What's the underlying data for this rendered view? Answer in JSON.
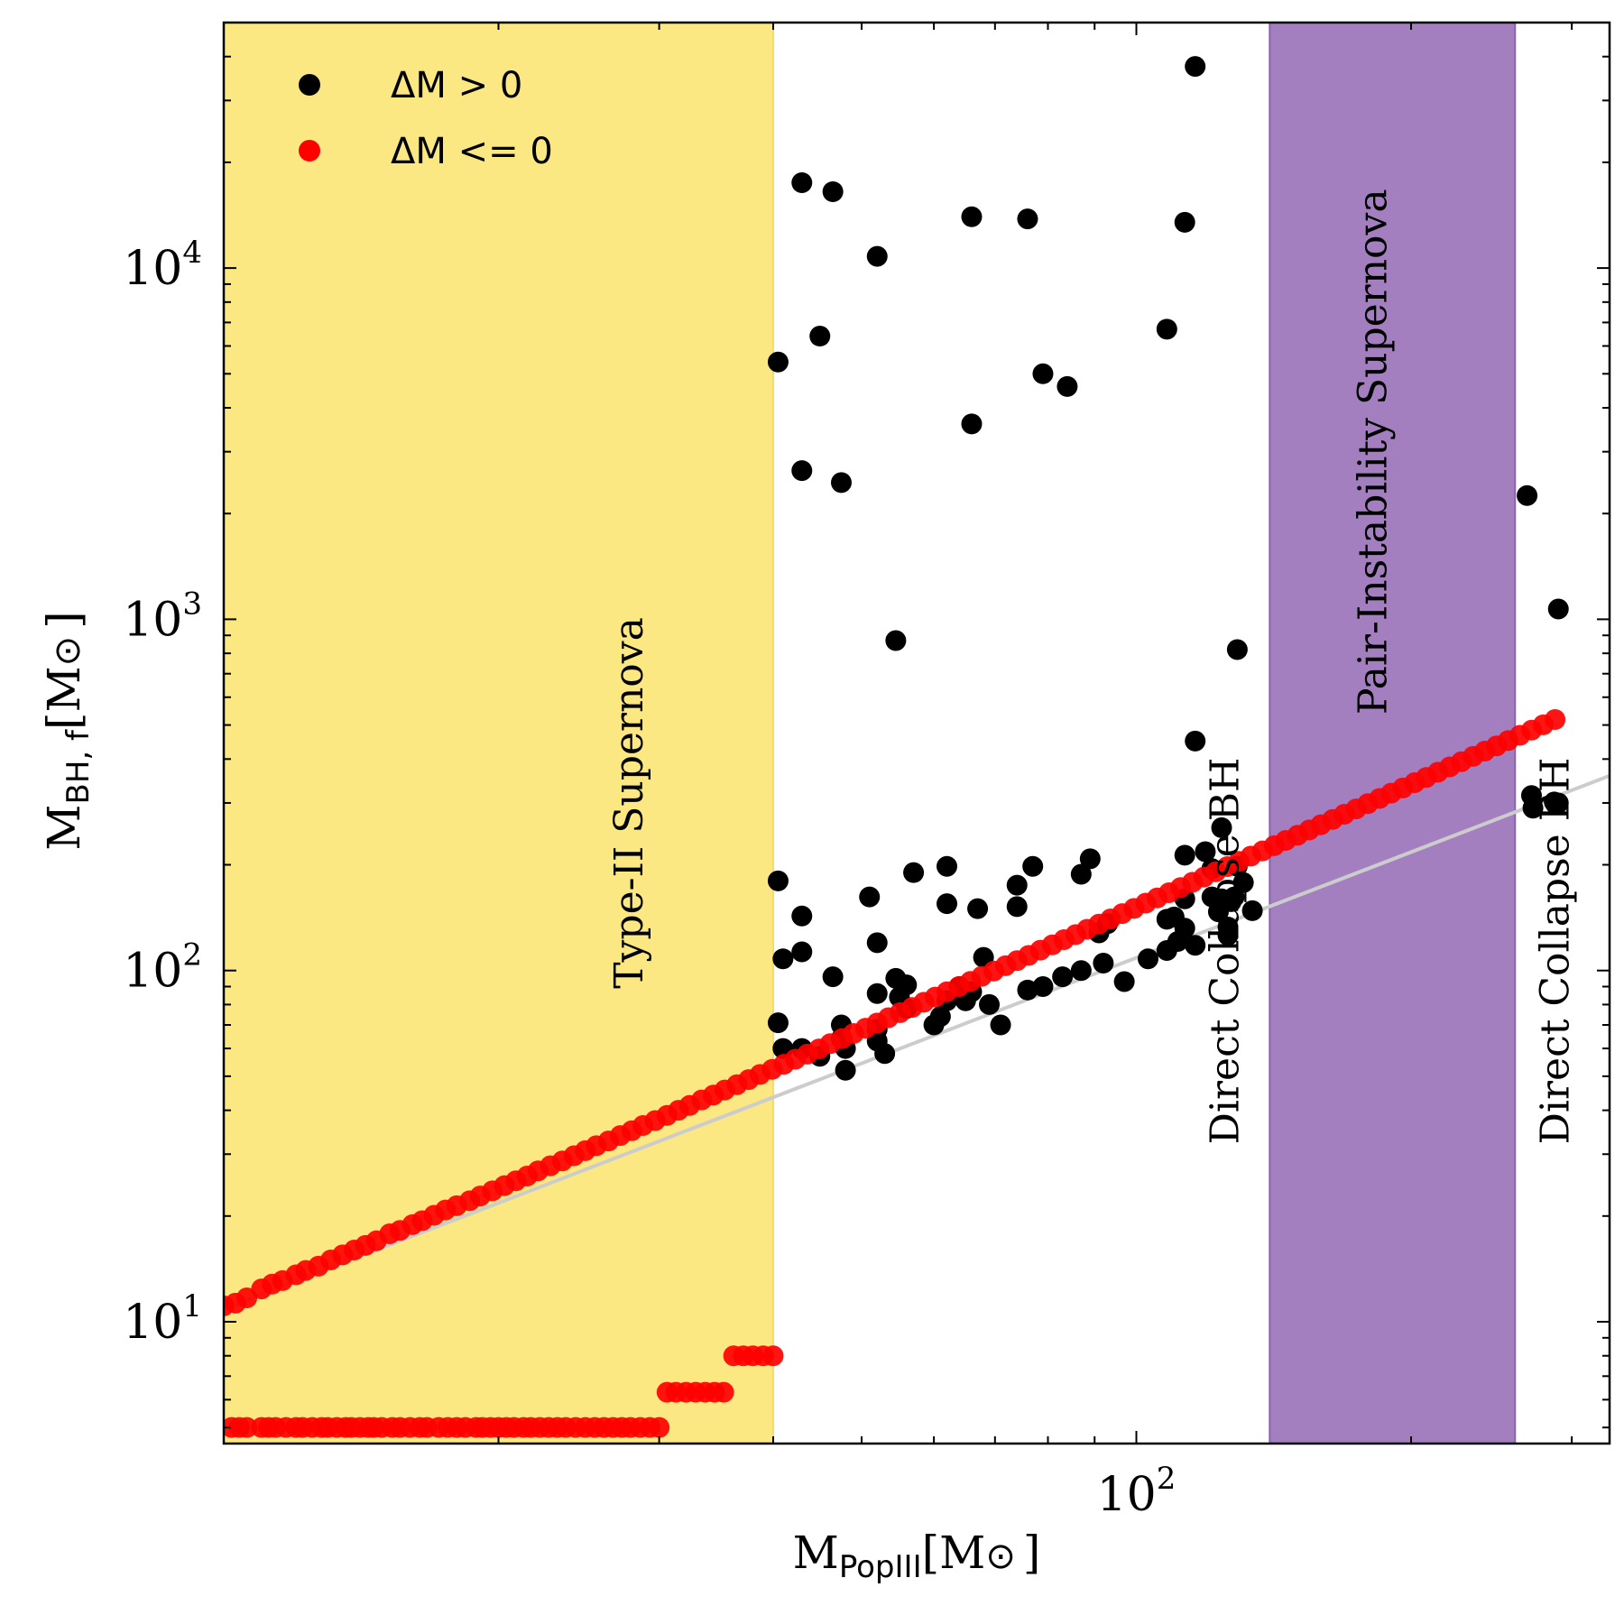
{
  "chart_data": {
    "type": "scatter",
    "xscale": "log",
    "yscale": "log",
    "xlim": [
      10,
      330
    ],
    "ylim": [
      4.5,
      50000
    ],
    "xlabel_main": "M",
    "xlabel_sub": "PopIII",
    "xlabel_unit": "[M",
    "xlabel_sun": "⊙",
    "xlabel_close": "]",
    "ylabel_main": "M",
    "ylabel_sub": "BH, f",
    "ylabel_unit": "[M",
    "ylabel_sun": "⊙",
    "ylabel_close": "]",
    "x_ticks": [
      {
        "value": 100,
        "base": "10",
        "exp": "2"
      }
    ],
    "y_ticks": [
      {
        "value": 10,
        "base": "10",
        "exp": "1"
      },
      {
        "value": 100,
        "base": "10",
        "exp": "2"
      },
      {
        "value": 1000,
        "base": "10",
        "exp": "3"
      },
      {
        "value": 10000,
        "base": "10",
        "exp": "4"
      }
    ],
    "regions": [
      {
        "name": "type-ii-region",
        "x_range": [
          10,
          40
        ],
        "color": "#fce883",
        "edge": "#f6dc60",
        "label": "Type-II Supernova",
        "label_x": 28,
        "label_y": 300
      },
      {
        "name": "pair-instability-region",
        "x_range": [
          140,
          260
        ],
        "color": "#a37fbf",
        "edge": "#8a63ad",
        "label": "Pair-Instability Supernova",
        "label_x": 183,
        "label_y": 3000
      },
      {
        "name": "direct-collapse-bh-left-label",
        "label": "Direct Collapse BH",
        "label_x": 126,
        "label_y": 32,
        "label_only": true
      },
      {
        "name": "direct-collapse-bh-right-label",
        "label": "Direct Collapse BH",
        "label_x": 290,
        "label_y": 32,
        "label_only": true
      }
    ],
    "reference_line": {
      "x": [
        10,
        330
      ],
      "y": [
        10.9,
        358.5
      ],
      "color": "#cccccc"
    },
    "legend": {
      "position": "top-left",
      "entries": [
        {
          "label": "ΔM > 0",
          "color": "#000000"
        },
        {
          "label": "ΔM <= 0",
          "color": "#ff0000"
        }
      ]
    },
    "series": [
      {
        "name": "ΔM > 0",
        "color": "#000000",
        "points": [
          [
            40.5,
            5400
          ],
          [
            43,
            2650
          ],
          [
            43,
            17500
          ],
          [
            45,
            6400
          ],
          [
            46.5,
            16500
          ],
          [
            47.5,
            2450
          ],
          [
            52,
            10800
          ],
          [
            54.5,
            870
          ],
          [
            66,
            14000
          ],
          [
            66,
            3600
          ],
          [
            76,
            13800
          ],
          [
            79,
            5000
          ],
          [
            84,
            4600
          ],
          [
            108,
            6700
          ],
          [
            113,
            13500
          ],
          [
            116,
            37500
          ],
          [
            116,
            450
          ],
          [
            129,
            820
          ],
          [
            268,
            2250
          ],
          [
            290,
            1070
          ],
          [
            40.5,
            180
          ],
          [
            41,
            108
          ],
          [
            40.5,
            71
          ],
          [
            41,
            60
          ],
          [
            43,
            143
          ],
          [
            43,
            113
          ],
          [
            43,
            60
          ],
          [
            45,
            57
          ],
          [
            46.5,
            96
          ],
          [
            47.5,
            70
          ],
          [
            47.5,
            64
          ],
          [
            48,
            60
          ],
          [
            48,
            52
          ],
          [
            51,
            162
          ],
          [
            52,
            120
          ],
          [
            52,
            86
          ],
          [
            52,
            68
          ],
          [
            52,
            63
          ],
          [
            53,
            58
          ],
          [
            54.5,
            95
          ],
          [
            55,
            84
          ],
          [
            56,
            91
          ],
          [
            56,
            78
          ],
          [
            57,
            190
          ],
          [
            60,
            70
          ],
          [
            61,
            74
          ],
          [
            62,
            82
          ],
          [
            62,
            198
          ],
          [
            62,
            155
          ],
          [
            64,
            90
          ],
          [
            65,
            82
          ],
          [
            66,
            87
          ],
          [
            67,
            150
          ],
          [
            68,
            109
          ],
          [
            69,
            80
          ],
          [
            71,
            70
          ],
          [
            74,
            175
          ],
          [
            74,
            152
          ],
          [
            76,
            88
          ],
          [
            77,
            198
          ],
          [
            79,
            90
          ],
          [
            83,
            96
          ],
          [
            87,
            188
          ],
          [
            87,
            100
          ],
          [
            89,
            208
          ],
          [
            91,
            128
          ],
          [
            92,
            105
          ],
          [
            93,
            136
          ],
          [
            97,
            93
          ],
          [
            103,
            108
          ],
          [
            108,
            140
          ],
          [
            108,
            114
          ],
          [
            110,
            142
          ],
          [
            111,
            121
          ],
          [
            113,
            213
          ],
          [
            113,
            160
          ],
          [
            113,
            132
          ],
          [
            116,
            118
          ],
          [
            119,
            218
          ],
          [
            121,
            195
          ],
          [
            121,
            162
          ],
          [
            123,
            147
          ],
          [
            124,
            160
          ],
          [
            124,
            255
          ],
          [
            126,
            126
          ],
          [
            126,
            133
          ],
          [
            127,
            157
          ],
          [
            128,
            162
          ],
          [
            129,
            198
          ],
          [
            131,
            178
          ],
          [
            134,
            148
          ],
          [
            271,
            315
          ],
          [
            272,
            290
          ],
          [
            287,
            302
          ],
          [
            288,
            298
          ],
          [
            290,
            300
          ]
        ]
      },
      {
        "name": "ΔM <= 0",
        "color": "#ff0000",
        "points": [
          [
            10,
            11.1
          ],
          [
            10.3,
            11.3
          ],
          [
            10.6,
            11.7
          ],
          [
            11.0,
            12.4
          ],
          [
            11.3,
            12.8
          ],
          [
            11.6,
            13.1
          ],
          [
            12.0,
            13.6
          ],
          [
            12.3,
            14.0
          ],
          [
            12.7,
            14.4
          ],
          [
            13.1,
            15.0
          ],
          [
            13.5,
            15.5
          ],
          [
            13.9,
            16.0
          ],
          [
            14.3,
            16.5
          ],
          [
            14.7,
            17.0
          ],
          [
            15.2,
            17.8
          ],
          [
            15.6,
            18.2
          ],
          [
            16.1,
            18.9
          ],
          [
            16.5,
            19.4
          ],
          [
            17.0,
            20.1
          ],
          [
            17.5,
            20.8
          ],
          [
            18.0,
            21.4
          ],
          [
            18.6,
            22.1
          ],
          [
            19.1,
            22.8
          ],
          [
            19.7,
            23.6
          ],
          [
            20.3,
            24.4
          ],
          [
            20.9,
            25.2
          ],
          [
            21.5,
            26.0
          ],
          [
            22.1,
            26.9
          ],
          [
            22.8,
            27.8
          ],
          [
            23.5,
            28.7
          ],
          [
            24.2,
            29.7
          ],
          [
            24.9,
            30.7
          ],
          [
            25.6,
            31.7
          ],
          [
            26.4,
            32.7
          ],
          [
            27.2,
            33.9
          ],
          [
            28.0,
            35.0
          ],
          [
            28.8,
            36.2
          ],
          [
            29.7,
            37.4
          ],
          [
            30.6,
            38.7
          ],
          [
            31.5,
            40.0
          ],
          [
            32.4,
            41.3
          ],
          [
            33.4,
            42.8
          ],
          [
            34.4,
            44.2
          ],
          [
            35.4,
            45.7
          ],
          [
            36.5,
            47.3
          ],
          [
            37.6,
            48.9
          ],
          [
            38.7,
            50.6
          ],
          [
            39.9,
            52.3
          ],
          [
            41.1,
            54.1
          ],
          [
            42.3,
            55.9
          ],
          [
            43.6,
            57.8
          ],
          [
            44.9,
            59.8
          ],
          [
            46.2,
            61.9
          ],
          [
            47.6,
            64.0
          ],
          [
            49.0,
            66.2
          ],
          [
            50.5,
            68.5
          ],
          [
            52.0,
            70.9
          ],
          [
            53.5,
            73.4
          ],
          [
            55.1,
            75.9
          ],
          [
            56.8,
            78.5
          ],
          [
            58.5,
            81.2
          ],
          [
            60.2,
            84.0
          ],
          [
            62.0,
            87.0
          ],
          [
            63.9,
            90.0
          ],
          [
            65.8,
            93.1
          ],
          [
            67.7,
            96.3
          ],
          [
            69.8,
            99.7
          ],
          [
            71.9,
            103.2
          ],
          [
            74.0,
            106.7
          ],
          [
            76.2,
            110.4
          ],
          [
            78.5,
            114.3
          ],
          [
            80.9,
            118.3
          ],
          [
            83.3,
            122.4
          ],
          [
            85.8,
            126.6
          ],
          [
            88.3,
            131.0
          ],
          [
            91.0,
            135.6
          ],
          [
            93.7,
            140.3
          ],
          [
            96.5,
            145.2
          ],
          [
            99.4,
            150.2
          ],
          [
            102.4,
            155.5
          ],
          [
            105.4,
            160.9
          ],
          [
            108.6,
            166.5
          ],
          [
            111.8,
            172.3
          ],
          [
            115.2,
            178.3
          ],
          [
            118.6,
            184.5
          ],
          [
            122.2,
            191.0
          ],
          [
            125.8,
            197.6
          ],
          [
            129.6,
            204.5
          ],
          [
            133.5,
            211.7
          ],
          [
            137.5,
            219.1
          ],
          [
            141.6,
            226.7
          ],
          [
            145.8,
            234.6
          ],
          [
            150.2,
            242.8
          ],
          [
            154.7,
            251.3
          ],
          [
            159.3,
            260.1
          ],
          [
            164.1,
            269.2
          ],
          [
            169.0,
            278.6
          ],
          [
            174.1,
            288.4
          ],
          [
            179.3,
            298.5
          ],
          [
            184.7,
            309.0
          ],
          [
            190.2,
            319.8
          ],
          [
            195.9,
            331.0
          ],
          [
            201.8,
            342.6
          ],
          [
            207.8,
            354.6
          ],
          [
            214.0,
            367.0
          ],
          [
            220.5,
            379.9
          ],
          [
            227.1,
            393.2
          ],
          [
            233.9,
            407.0
          ],
          [
            240.9,
            421.3
          ],
          [
            248.1,
            436.1
          ],
          [
            255.5,
            451.4
          ],
          [
            263.2,
            467.3
          ],
          [
            271.1,
            483.7
          ],
          [
            279.2,
            500.6
          ],
          [
            287.6,
            518.2
          ],
          [
            10.2,
            5
          ],
          [
            10.4,
            5
          ],
          [
            10.6,
            5
          ],
          [
            11.0,
            5
          ],
          [
            11.2,
            5
          ],
          [
            11.4,
            5
          ],
          [
            11.7,
            5
          ],
          [
            12.0,
            5
          ],
          [
            12.2,
            5
          ],
          [
            12.5,
            5
          ],
          [
            12.8,
            5
          ],
          [
            13.0,
            5
          ],
          [
            13.3,
            5
          ],
          [
            13.6,
            5
          ],
          [
            13.8,
            5
          ],
          [
            14.1,
            5
          ],
          [
            14.4,
            5
          ],
          [
            14.6,
            5
          ],
          [
            14.9,
            5
          ],
          [
            15.3,
            5
          ],
          [
            15.6,
            5
          ],
          [
            16.0,
            5
          ],
          [
            16.4,
            5
          ],
          [
            16.7,
            5
          ],
          [
            17.2,
            5
          ],
          [
            17.6,
            5
          ],
          [
            18.0,
            5
          ],
          [
            18.4,
            5
          ],
          [
            18.9,
            5
          ],
          [
            19.2,
            5
          ],
          [
            19.6,
            5
          ],
          [
            20.0,
            5
          ],
          [
            20.4,
            5
          ],
          [
            20.8,
            5
          ],
          [
            21.3,
            5
          ],
          [
            21.7,
            5
          ],
          [
            22.2,
            5
          ],
          [
            22.7,
            5
          ],
          [
            23.2,
            5
          ],
          [
            23.7,
            5
          ],
          [
            24.3,
            5
          ],
          [
            24.9,
            5
          ],
          [
            25.5,
            5
          ],
          [
            26.1,
            5
          ],
          [
            26.7,
            5
          ],
          [
            27.3,
            5
          ],
          [
            27.9,
            5
          ],
          [
            28.6,
            5
          ],
          [
            29.3,
            5
          ],
          [
            30.0,
            5
          ],
          [
            30.6,
            6.3
          ],
          [
            31.3,
            6.3
          ],
          [
            32.1,
            6.3
          ],
          [
            32.9,
            6.3
          ],
          [
            33.7,
            6.3
          ],
          [
            34.5,
            6.3
          ],
          [
            35.3,
            6.3
          ],
          [
            36.2,
            8
          ],
          [
            37.1,
            8
          ],
          [
            38.0,
            8
          ],
          [
            39.0,
            8
          ],
          [
            40.0,
            8
          ]
        ]
      }
    ]
  }
}
